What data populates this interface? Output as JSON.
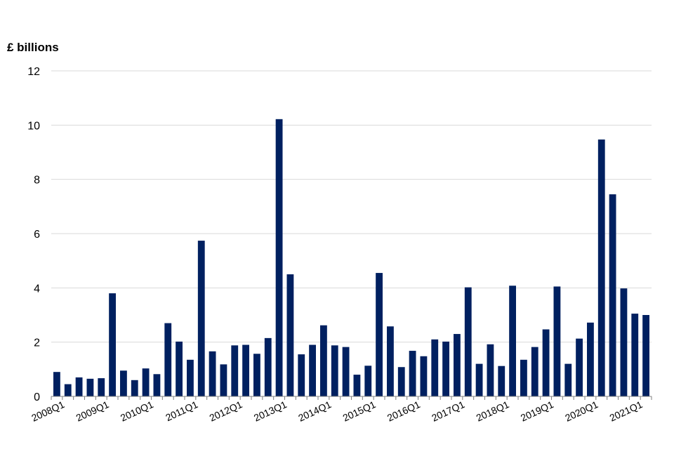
{
  "chart_data": {
    "type": "bar",
    "ylabel": "£ billions",
    "xlabel": "",
    "ylim": [
      0,
      12
    ],
    "yticks": [
      0,
      2,
      4,
      6,
      8,
      10,
      12
    ],
    "grid": true,
    "bar_color": "#002060",
    "categories": [
      "2008Q1",
      "2008Q2",
      "2008Q3",
      "2008Q4",
      "2009Q1",
      "2009Q2",
      "2009Q3",
      "2009Q4",
      "2010Q1",
      "2010Q2",
      "2010Q3",
      "2010Q4",
      "2011Q1",
      "2011Q2",
      "2011Q3",
      "2011Q4",
      "2012Q1",
      "2012Q2",
      "2012Q3",
      "2012Q4",
      "2013Q1",
      "2013Q2",
      "2013Q3",
      "2013Q4",
      "2014Q1",
      "2014Q2",
      "2014Q3",
      "2014Q4",
      "2015Q1",
      "2015Q2",
      "2015Q3",
      "2015Q4",
      "2016Q1",
      "2016Q2",
      "2016Q3",
      "2016Q4",
      "2017Q1",
      "2017Q2",
      "2017Q3",
      "2017Q4",
      "2018Q1",
      "2018Q2",
      "2018Q3",
      "2018Q4",
      "2019Q1",
      "2019Q2",
      "2019Q3",
      "2019Q4",
      "2020Q1",
      "2020Q2",
      "2020Q3",
      "2020Q4",
      "2021Q1",
      "2021Q2"
    ],
    "x_tick_labels": [
      "2008Q1",
      "2009Q1",
      "2010Q1",
      "2011Q1",
      "2012Q1",
      "2013Q1",
      "2014Q1",
      "2015Q1",
      "2016Q1",
      "2017Q1",
      "2018Q1",
      "2019Q1",
      "2020Q1",
      "2021Q1"
    ],
    "values": [
      0.9,
      0.45,
      0.7,
      0.65,
      0.67,
      3.8,
      0.95,
      0.6,
      1.03,
      0.82,
      2.7,
      2.02,
      1.35,
      5.74,
      1.66,
      1.18,
      1.88,
      1.9,
      1.57,
      2.15,
      10.22,
      4.5,
      1.55,
      1.9,
      2.62,
      1.88,
      1.82,
      0.8,
      1.13,
      4.55,
      2.58,
      1.08,
      1.68,
      1.48,
      2.1,
      2.02,
      2.3,
      4.02,
      1.2,
      1.92,
      1.12,
      4.08,
      1.35,
      1.82,
      2.47,
      4.05,
      1.2,
      2.13,
      2.72,
      9.47,
      7.45,
      3.98,
      3.05,
      3.0
    ]
  }
}
